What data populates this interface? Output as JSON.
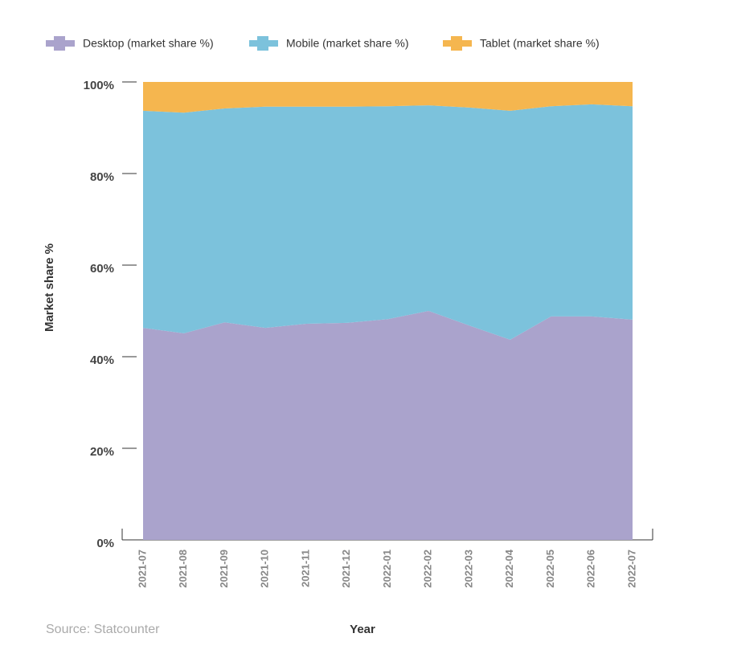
{
  "chart_data": {
    "type": "stacked-area",
    "categories": [
      "2021-07",
      "2021-08",
      "2021-09",
      "2021-10",
      "2021-11",
      "2021-12",
      "2022-01",
      "2022-02",
      "2022-03",
      "2022-04",
      "2022-05",
      "2022-06",
      "2022-07"
    ],
    "series": [
      {
        "name": "Desktop (market share %)",
        "color": "#aaa3cc",
        "values": [
          46.3,
          45.1,
          47.5,
          46.3,
          47.2,
          47.4,
          48.2,
          50.0,
          46.8,
          43.7,
          48.8,
          48.8,
          48.1
        ]
      },
      {
        "name": "Mobile (market share %)",
        "color": "#7cc2dc",
        "values": [
          47.4,
          48.2,
          46.7,
          48.3,
          47.4,
          47.2,
          46.5,
          44.9,
          47.6,
          50.0,
          45.9,
          46.3,
          46.6
        ]
      },
      {
        "name": "Tablet (market share %)",
        "color": "#f5b64f",
        "values": [
          6.3,
          6.7,
          5.8,
          5.4,
          5.4,
          5.4,
          5.3,
          5.1,
          5.6,
          6.3,
          5.3,
          4.9,
          5.3
        ]
      }
    ],
    "ylim": [
      0,
      100
    ],
    "yticks": [
      {
        "value": 0,
        "label": "0%"
      },
      {
        "value": 20,
        "label": "20%"
      },
      {
        "value": 40,
        "label": "40%"
      },
      {
        "value": 60,
        "label": "60%"
      },
      {
        "value": 80,
        "label": "80%"
      },
      {
        "value": 100,
        "label": "100%"
      }
    ],
    "y_label": "Market share %",
    "x_label": "Year",
    "source": "Source: Statcounter"
  }
}
